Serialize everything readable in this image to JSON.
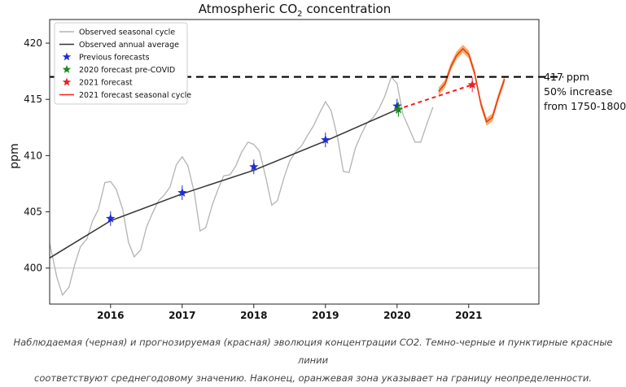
{
  "chart_data": {
    "type": "line",
    "title_main": "Atmospheric CO",
    "title_sub": "2",
    "title_end": " concentration",
    "ylabel": "ppm",
    "xlabel": "",
    "xlim": [
      2015.15,
      2021.98
    ],
    "ylim": [
      396.8,
      422.1
    ],
    "y_ticks": [
      400,
      405,
      410,
      415,
      420
    ],
    "x_ticks": [
      2016,
      2017,
      2018,
      2019,
      2020,
      2021
    ],
    "grid": false,
    "legend_placement": "top-left",
    "legend": [
      {
        "label": "Observed seasonal cycle",
        "style": "grey-line"
      },
      {
        "label": "Observed annual average",
        "style": "black-line"
      },
      {
        "label": "Previous forecasts",
        "style": "blue-star"
      },
      {
        "label": "2020 forecast pre-COVID",
        "style": "green-star"
      },
      {
        "label": "2021 forecast",
        "style": "red-star"
      },
      {
        "label": "2021 forecast seasonal cycle",
        "style": "red-line"
      }
    ],
    "series": [
      {
        "name": "Observed seasonal cycle",
        "color": "#b3b3b3",
        "x": [
          2015.15,
          2015.25,
          2015.33,
          2015.42,
          2015.5,
          2015.58,
          2015.67,
          2015.75,
          2015.83,
          2015.92,
          2016.0,
          2016.08,
          2016.17,
          2016.25,
          2016.33,
          2016.42,
          2016.5,
          2016.58,
          2016.67,
          2016.75,
          2016.83,
          2016.92,
          2017.0,
          2017.08,
          2017.17,
          2017.25,
          2017.33,
          2017.42,
          2017.5,
          2017.58,
          2017.67,
          2017.75,
          2017.83,
          2017.92,
          2018.0,
          2018.08,
          2018.17,
          2018.25,
          2018.33,
          2018.42,
          2018.5,
          2018.58,
          2018.67,
          2018.75,
          2018.83,
          2018.92,
          2019.0,
          2019.08,
          2019.17,
          2019.25,
          2019.33,
          2019.42,
          2019.5,
          2019.58,
          2019.67,
          2019.75,
          2019.83,
          2019.92,
          2020.0,
          2020.08,
          2020.17,
          2020.25,
          2020.33,
          2020.42,
          2020.5
        ],
        "y": [
          402.2,
          399.2,
          397.6,
          398.3,
          400.3,
          401.9,
          402.6,
          404.2,
          405.2,
          407.6,
          407.7,
          407.0,
          405.2,
          402.3,
          401.0,
          401.6,
          403.6,
          404.8,
          406.0,
          406.5,
          407.2,
          409.2,
          409.9,
          409.1,
          406.7,
          403.3,
          403.6,
          405.6,
          407.0,
          408.2,
          408.3,
          409.1,
          410.3,
          411.2,
          411.0,
          410.4,
          408.0,
          405.6,
          406.0,
          408.0,
          409.5,
          410.3,
          410.9,
          411.8,
          412.6,
          413.8,
          414.8,
          414.0,
          411.6,
          408.6,
          408.5,
          410.7,
          411.9,
          412.9,
          413.4,
          414.2,
          415.3,
          417.0,
          416.4,
          413.7,
          412.4,
          411.2,
          411.2,
          412.9,
          414.3
        ]
      },
      {
        "name": "Observed annual average",
        "color": "#333333",
        "x": [
          2015.15,
          2016.0,
          2017.0,
          2018.0,
          2019.0,
          2020.0
        ],
        "y": [
          400.9,
          404.2,
          406.6,
          408.7,
          411.3,
          414.1
        ]
      },
      {
        "name": "2021 forecast",
        "color": "#ff1a1a",
        "style": "dashed",
        "x": [
          2020.0,
          2021.05
        ],
        "y": [
          414.1,
          416.3
        ]
      },
      {
        "name": "2021 forecast seasonal cycle",
        "color": "#e8381e",
        "band_color": "#f8a04a",
        "band_halfwidth": 0.35,
        "x": [
          2020.58,
          2020.67,
          2020.75,
          2020.83,
          2020.92,
          2021.0,
          2021.08,
          2021.17,
          2021.25,
          2021.33,
          2021.42,
          2021.5
        ],
        "y": [
          415.7,
          416.4,
          417.9,
          418.9,
          419.5,
          419.0,
          417.4,
          414.6,
          413.0,
          413.4,
          415.3,
          416.8
        ]
      }
    ],
    "markers": [
      {
        "name": "Previous forecasts",
        "color": "#1f2fcf",
        "x": 2016.0,
        "y": 404.4
      },
      {
        "name": "Previous forecasts",
        "color": "#1f2fcf",
        "x": 2017.0,
        "y": 406.7
      },
      {
        "name": "Previous forecasts",
        "color": "#1f2fcf",
        "x": 2018.0,
        "y": 409.0
      },
      {
        "name": "Previous forecasts",
        "color": "#1f2fcf",
        "x": 2019.0,
        "y": 411.4
      },
      {
        "name": "Previous forecasts",
        "color": "#1f2fcf",
        "x": 2020.0,
        "y": 414.4
      },
      {
        "name": "2020 forecast pre-COVID",
        "color": "#1a8a1a",
        "x": 2020.02,
        "y": 414.1
      },
      {
        "name": "2021 forecast",
        "color": "#e8202a",
        "x": 2021.05,
        "y": 416.3
      }
    ],
    "reference_lines": [
      {
        "y": 417.0,
        "color": "#000000",
        "style": "dashed"
      },
      {
        "y": 400.0,
        "color": "#c8c8c8",
        "style": "solid"
      }
    ],
    "annotation": [
      "417 ppm",
      "50% increase",
      "from 1750-1800"
    ]
  },
  "caption": {
    "line1": "Наблюдаемая (черная) и прогнозируемая (красная) эволюция концентрации CO2. Темно-черные и пунктирные красные линии",
    "line2": "соответствуют среднегодовому значению. Наконец, оранжевая зона указывает на границу неопределенности."
  }
}
